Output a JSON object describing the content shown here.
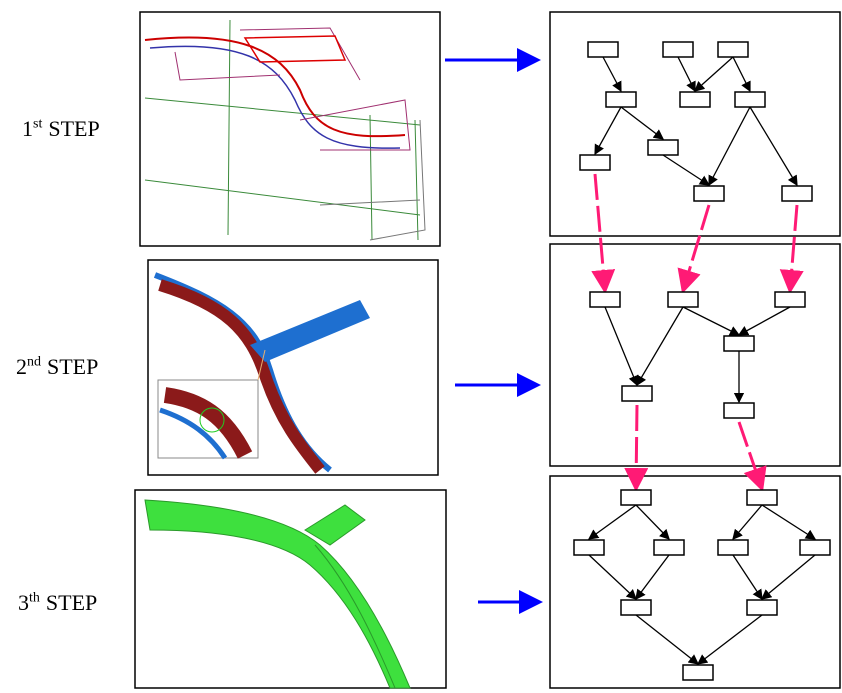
{
  "steps": [
    {
      "number": "1",
      "suffix": "st",
      "word": "STEP"
    },
    {
      "number": "2",
      "suffix": "nd",
      "word": "STEP"
    },
    {
      "number": "3",
      "suffix": "th",
      "word": "STEP"
    }
  ]
}
